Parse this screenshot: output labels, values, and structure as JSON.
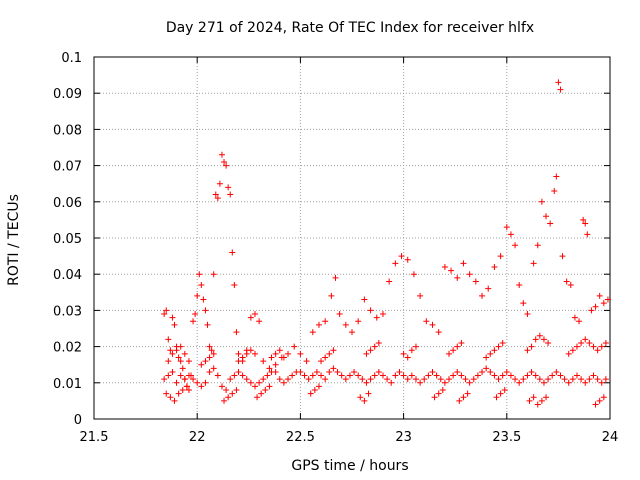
{
  "chart_data": {
    "type": "scatter",
    "title": "Day 271 of 2024, Rate Of TEC Index for receiver hlfx",
    "xlabel": "GPS time / hours",
    "ylabel": "ROTI / TECUs",
    "xlim": [
      21.5,
      24
    ],
    "ylim": [
      0,
      0.1
    ],
    "xticks": [
      "21.5",
      "22",
      "22.5",
      "23",
      "23.5",
      "24"
    ],
    "yticks": [
      "0",
      "0.01",
      "0.02",
      "0.03",
      "0.04",
      "0.05",
      "0.06",
      "0.07",
      "0.08",
      "0.09",
      "0.1"
    ],
    "grid": true,
    "marker": "+",
    "color": "#ff0000",
    "series": [
      {
        "name": "ROTI",
        "points": [
          [
            21.84,
            0.029
          ],
          [
            21.85,
            0.03
          ],
          [
            21.86,
            0.022
          ],
          [
            21.87,
            0.019
          ],
          [
            21.88,
            0.028
          ],
          [
            21.89,
            0.026
          ],
          [
            21.9,
            0.02
          ],
          [
            21.91,
            0.017
          ],
          [
            21.92,
            0.016
          ],
          [
            21.93,
            0.014
          ],
          [
            21.94,
            0.011
          ],
          [
            21.95,
            0.009
          ],
          [
            21.96,
            0.008
          ],
          [
            21.97,
            0.012
          ],
          [
            21.98,
            0.027
          ],
          [
            21.99,
            0.029
          ],
          [
            22.0,
            0.034
          ],
          [
            22.01,
            0.04
          ],
          [
            22.02,
            0.037
          ],
          [
            22.03,
            0.033
          ],
          [
            22.04,
            0.03
          ],
          [
            22.05,
            0.026
          ],
          [
            22.06,
            0.02
          ],
          [
            22.07,
            0.019
          ],
          [
            22.08,
            0.04
          ],
          [
            22.09,
            0.062
          ],
          [
            22.1,
            0.061
          ],
          [
            22.11,
            0.065
          ],
          [
            22.12,
            0.073
          ],
          [
            22.13,
            0.071
          ],
          [
            22.14,
            0.07
          ],
          [
            22.15,
            0.064
          ],
          [
            22.16,
            0.062
          ],
          [
            22.17,
            0.046
          ],
          [
            22.18,
            0.037
          ],
          [
            22.19,
            0.024
          ],
          [
            22.2,
            0.018
          ],
          [
            22.22,
            0.016
          ],
          [
            22.24,
            0.019
          ],
          [
            22.26,
            0.028
          ],
          [
            22.28,
            0.029
          ],
          [
            22.3,
            0.027
          ],
          [
            22.32,
            0.016
          ],
          [
            22.35,
            0.014
          ],
          [
            22.38,
            0.015
          ],
          [
            22.41,
            0.017
          ],
          [
            22.44,
            0.018
          ],
          [
            22.47,
            0.02
          ],
          [
            22.5,
            0.018
          ],
          [
            22.53,
            0.016
          ],
          [
            22.56,
            0.024
          ],
          [
            22.59,
            0.026
          ],
          [
            22.62,
            0.027
          ],
          [
            22.65,
            0.034
          ],
          [
            22.67,
            0.039
          ],
          [
            22.69,
            0.029
          ],
          [
            22.72,
            0.026
          ],
          [
            22.75,
            0.024
          ],
          [
            22.78,
            0.027
          ],
          [
            22.81,
            0.033
          ],
          [
            22.84,
            0.03
          ],
          [
            22.87,
            0.028
          ],
          [
            22.9,
            0.029
          ],
          [
            22.93,
            0.038
          ],
          [
            22.96,
            0.043
          ],
          [
            22.99,
            0.045
          ],
          [
            23.02,
            0.044
          ],
          [
            23.05,
            0.04
          ],
          [
            23.08,
            0.034
          ],
          [
            23.11,
            0.027
          ],
          [
            23.14,
            0.026
          ],
          [
            23.17,
            0.024
          ],
          [
            23.2,
            0.042
          ],
          [
            23.23,
            0.041
          ],
          [
            23.26,
            0.039
          ],
          [
            23.29,
            0.043
          ],
          [
            23.32,
            0.04
          ],
          [
            23.35,
            0.038
          ],
          [
            23.38,
            0.034
          ],
          [
            23.41,
            0.036
          ],
          [
            23.44,
            0.042
          ],
          [
            23.47,
            0.045
          ],
          [
            23.5,
            0.053
          ],
          [
            23.52,
            0.051
          ],
          [
            23.54,
            0.048
          ],
          [
            23.56,
            0.037
          ],
          [
            23.58,
            0.032
          ],
          [
            23.6,
            0.029
          ],
          [
            23.63,
            0.043
          ],
          [
            23.65,
            0.048
          ],
          [
            23.67,
            0.06
          ],
          [
            23.69,
            0.056
          ],
          [
            23.71,
            0.054
          ],
          [
            23.73,
            0.063
          ],
          [
            23.74,
            0.067
          ],
          [
            23.75,
            0.093
          ],
          [
            23.76,
            0.091
          ],
          [
            23.77,
            0.045
          ],
          [
            23.79,
            0.038
          ],
          [
            23.81,
            0.037
          ],
          [
            23.83,
            0.028
          ],
          [
            23.85,
            0.027
          ],
          [
            23.87,
            0.055
          ],
          [
            23.88,
            0.054
          ],
          [
            23.89,
            0.051
          ],
          [
            23.91,
            0.03
          ],
          [
            23.93,
            0.031
          ],
          [
            23.95,
            0.034
          ],
          [
            23.97,
            0.032
          ],
          [
            23.99,
            0.033
          ],
          [
            21.84,
            0.011
          ],
          [
            21.86,
            0.012
          ],
          [
            21.88,
            0.013
          ],
          [
            21.9,
            0.01
          ],
          [
            21.92,
            0.012
          ],
          [
            21.94,
            0.011
          ],
          [
            21.96,
            0.012
          ],
          [
            21.98,
            0.011
          ],
          [
            22.0,
            0.01
          ],
          [
            22.02,
            0.009
          ],
          [
            22.04,
            0.01
          ],
          [
            22.06,
            0.013
          ],
          [
            22.08,
            0.014
          ],
          [
            22.1,
            0.012
          ],
          [
            22.12,
            0.009
          ],
          [
            22.14,
            0.008
          ],
          [
            22.16,
            0.011
          ],
          [
            22.18,
            0.012
          ],
          [
            22.2,
            0.013
          ],
          [
            22.22,
            0.012
          ],
          [
            22.24,
            0.011
          ],
          [
            22.26,
            0.01
          ],
          [
            22.28,
            0.009
          ],
          [
            22.3,
            0.01
          ],
          [
            22.32,
            0.011
          ],
          [
            22.34,
            0.012
          ],
          [
            22.36,
            0.013
          ],
          [
            22.38,
            0.013
          ],
          [
            22.4,
            0.011
          ],
          [
            22.42,
            0.01
          ],
          [
            22.44,
            0.011
          ],
          [
            22.46,
            0.012
          ],
          [
            22.48,
            0.013
          ],
          [
            22.5,
            0.013
          ],
          [
            22.52,
            0.012
          ],
          [
            22.54,
            0.011
          ],
          [
            22.56,
            0.012
          ],
          [
            22.58,
            0.013
          ],
          [
            22.6,
            0.012
          ],
          [
            22.62,
            0.011
          ],
          [
            22.64,
            0.013
          ],
          [
            22.66,
            0.014
          ],
          [
            22.68,
            0.013
          ],
          [
            22.7,
            0.012
          ],
          [
            22.72,
            0.011
          ],
          [
            22.74,
            0.012
          ],
          [
            22.76,
            0.013
          ],
          [
            22.78,
            0.012
          ],
          [
            22.8,
            0.011
          ],
          [
            22.82,
            0.01
          ],
          [
            22.84,
            0.011
          ],
          [
            22.86,
            0.012
          ],
          [
            22.88,
            0.013
          ],
          [
            22.9,
            0.012
          ],
          [
            22.92,
            0.011
          ],
          [
            22.94,
            0.01
          ],
          [
            22.96,
            0.012
          ],
          [
            22.98,
            0.013
          ],
          [
            23.0,
            0.012
          ],
          [
            23.02,
            0.011
          ],
          [
            23.04,
            0.012
          ],
          [
            23.06,
            0.011
          ],
          [
            23.08,
            0.01
          ],
          [
            23.1,
            0.011
          ],
          [
            23.12,
            0.012
          ],
          [
            23.14,
            0.013
          ],
          [
            23.16,
            0.012
          ],
          [
            23.18,
            0.011
          ],
          [
            23.2,
            0.01
          ],
          [
            23.22,
            0.011
          ],
          [
            23.24,
            0.012
          ],
          [
            23.26,
            0.013
          ],
          [
            23.28,
            0.012
          ],
          [
            23.3,
            0.011
          ],
          [
            23.32,
            0.01
          ],
          [
            23.34,
            0.011
          ],
          [
            23.36,
            0.012
          ],
          [
            23.38,
            0.013
          ],
          [
            23.4,
            0.014
          ],
          [
            23.42,
            0.013
          ],
          [
            23.44,
            0.012
          ],
          [
            23.46,
            0.011
          ],
          [
            23.48,
            0.012
          ],
          [
            23.5,
            0.013
          ],
          [
            23.52,
            0.012
          ],
          [
            23.54,
            0.011
          ],
          [
            23.56,
            0.01
          ],
          [
            23.58,
            0.011
          ],
          [
            23.6,
            0.012
          ],
          [
            23.62,
            0.013
          ],
          [
            23.64,
            0.012
          ],
          [
            23.66,
            0.011
          ],
          [
            23.68,
            0.01
          ],
          [
            23.7,
            0.011
          ],
          [
            23.72,
            0.012
          ],
          [
            23.74,
            0.013
          ],
          [
            23.76,
            0.012
          ],
          [
            23.78,
            0.011
          ],
          [
            23.8,
            0.01
          ],
          [
            23.82,
            0.011
          ],
          [
            23.84,
            0.012
          ],
          [
            23.86,
            0.011
          ],
          [
            23.88,
            0.01
          ],
          [
            23.9,
            0.011
          ],
          [
            23.92,
            0.012
          ],
          [
            23.94,
            0.011
          ],
          [
            23.96,
            0.01
          ],
          [
            23.98,
            0.011
          ],
          [
            21.85,
            0.007
          ],
          [
            21.87,
            0.006
          ],
          [
            21.89,
            0.005
          ],
          [
            21.91,
            0.007
          ],
          [
            21.93,
            0.008
          ],
          [
            21.95,
            0.009
          ],
          [
            22.13,
            0.005
          ],
          [
            22.15,
            0.006
          ],
          [
            22.17,
            0.007
          ],
          [
            22.19,
            0.008
          ],
          [
            22.29,
            0.006
          ],
          [
            22.31,
            0.007
          ],
          [
            22.33,
            0.008
          ],
          [
            22.35,
            0.009
          ],
          [
            22.55,
            0.007
          ],
          [
            22.57,
            0.008
          ],
          [
            22.59,
            0.009
          ],
          [
            22.79,
            0.006
          ],
          [
            22.81,
            0.005
          ],
          [
            22.83,
            0.007
          ],
          [
            23.15,
            0.006
          ],
          [
            23.17,
            0.007
          ],
          [
            23.19,
            0.008
          ],
          [
            23.27,
            0.005
          ],
          [
            23.29,
            0.006
          ],
          [
            23.31,
            0.007
          ],
          [
            23.45,
            0.006
          ],
          [
            23.47,
            0.007
          ],
          [
            23.49,
            0.008
          ],
          [
            23.61,
            0.005
          ],
          [
            23.63,
            0.006
          ],
          [
            23.65,
            0.004
          ],
          [
            23.67,
            0.005
          ],
          [
            23.69,
            0.006
          ],
          [
            23.93,
            0.004
          ],
          [
            23.95,
            0.005
          ],
          [
            23.97,
            0.006
          ],
          [
            21.86,
            0.016
          ],
          [
            21.88,
            0.018
          ],
          [
            21.9,
            0.019
          ],
          [
            21.92,
            0.02
          ],
          [
            21.94,
            0.018
          ],
          [
            21.96,
            0.016
          ],
          [
            22.02,
            0.015
          ],
          [
            22.04,
            0.016
          ],
          [
            22.06,
            0.017
          ],
          [
            22.08,
            0.018
          ],
          [
            22.2,
            0.016
          ],
          [
            22.22,
            0.017
          ],
          [
            22.24,
            0.018
          ],
          [
            22.26,
            0.019
          ],
          [
            22.28,
            0.018
          ],
          [
            22.36,
            0.017
          ],
          [
            22.38,
            0.018
          ],
          [
            22.4,
            0.019
          ],
          [
            22.42,
            0.017
          ],
          [
            22.6,
            0.016
          ],
          [
            22.62,
            0.017
          ],
          [
            22.64,
            0.018
          ],
          [
            22.66,
            0.019
          ],
          [
            22.82,
            0.018
          ],
          [
            22.84,
            0.019
          ],
          [
            22.86,
            0.02
          ],
          [
            22.88,
            0.021
          ],
          [
            23.0,
            0.018
          ],
          [
            23.02,
            0.017
          ],
          [
            23.04,
            0.019
          ],
          [
            23.06,
            0.02
          ],
          [
            23.22,
            0.018
          ],
          [
            23.24,
            0.019
          ],
          [
            23.26,
            0.02
          ],
          [
            23.28,
            0.021
          ],
          [
            23.4,
            0.017
          ],
          [
            23.42,
            0.018
          ],
          [
            23.44,
            0.019
          ],
          [
            23.46,
            0.02
          ],
          [
            23.48,
            0.021
          ],
          [
            23.6,
            0.019
          ],
          [
            23.62,
            0.02
          ],
          [
            23.64,
            0.022
          ],
          [
            23.66,
            0.023
          ],
          [
            23.68,
            0.022
          ],
          [
            23.7,
            0.021
          ],
          [
            23.8,
            0.018
          ],
          [
            23.82,
            0.019
          ],
          [
            23.84,
            0.02
          ],
          [
            23.86,
            0.021
          ],
          [
            23.88,
            0.022
          ],
          [
            23.9,
            0.021
          ],
          [
            23.92,
            0.02
          ],
          [
            23.94,
            0.019
          ],
          [
            23.96,
            0.02
          ],
          [
            23.98,
            0.021
          ]
        ]
      }
    ]
  }
}
